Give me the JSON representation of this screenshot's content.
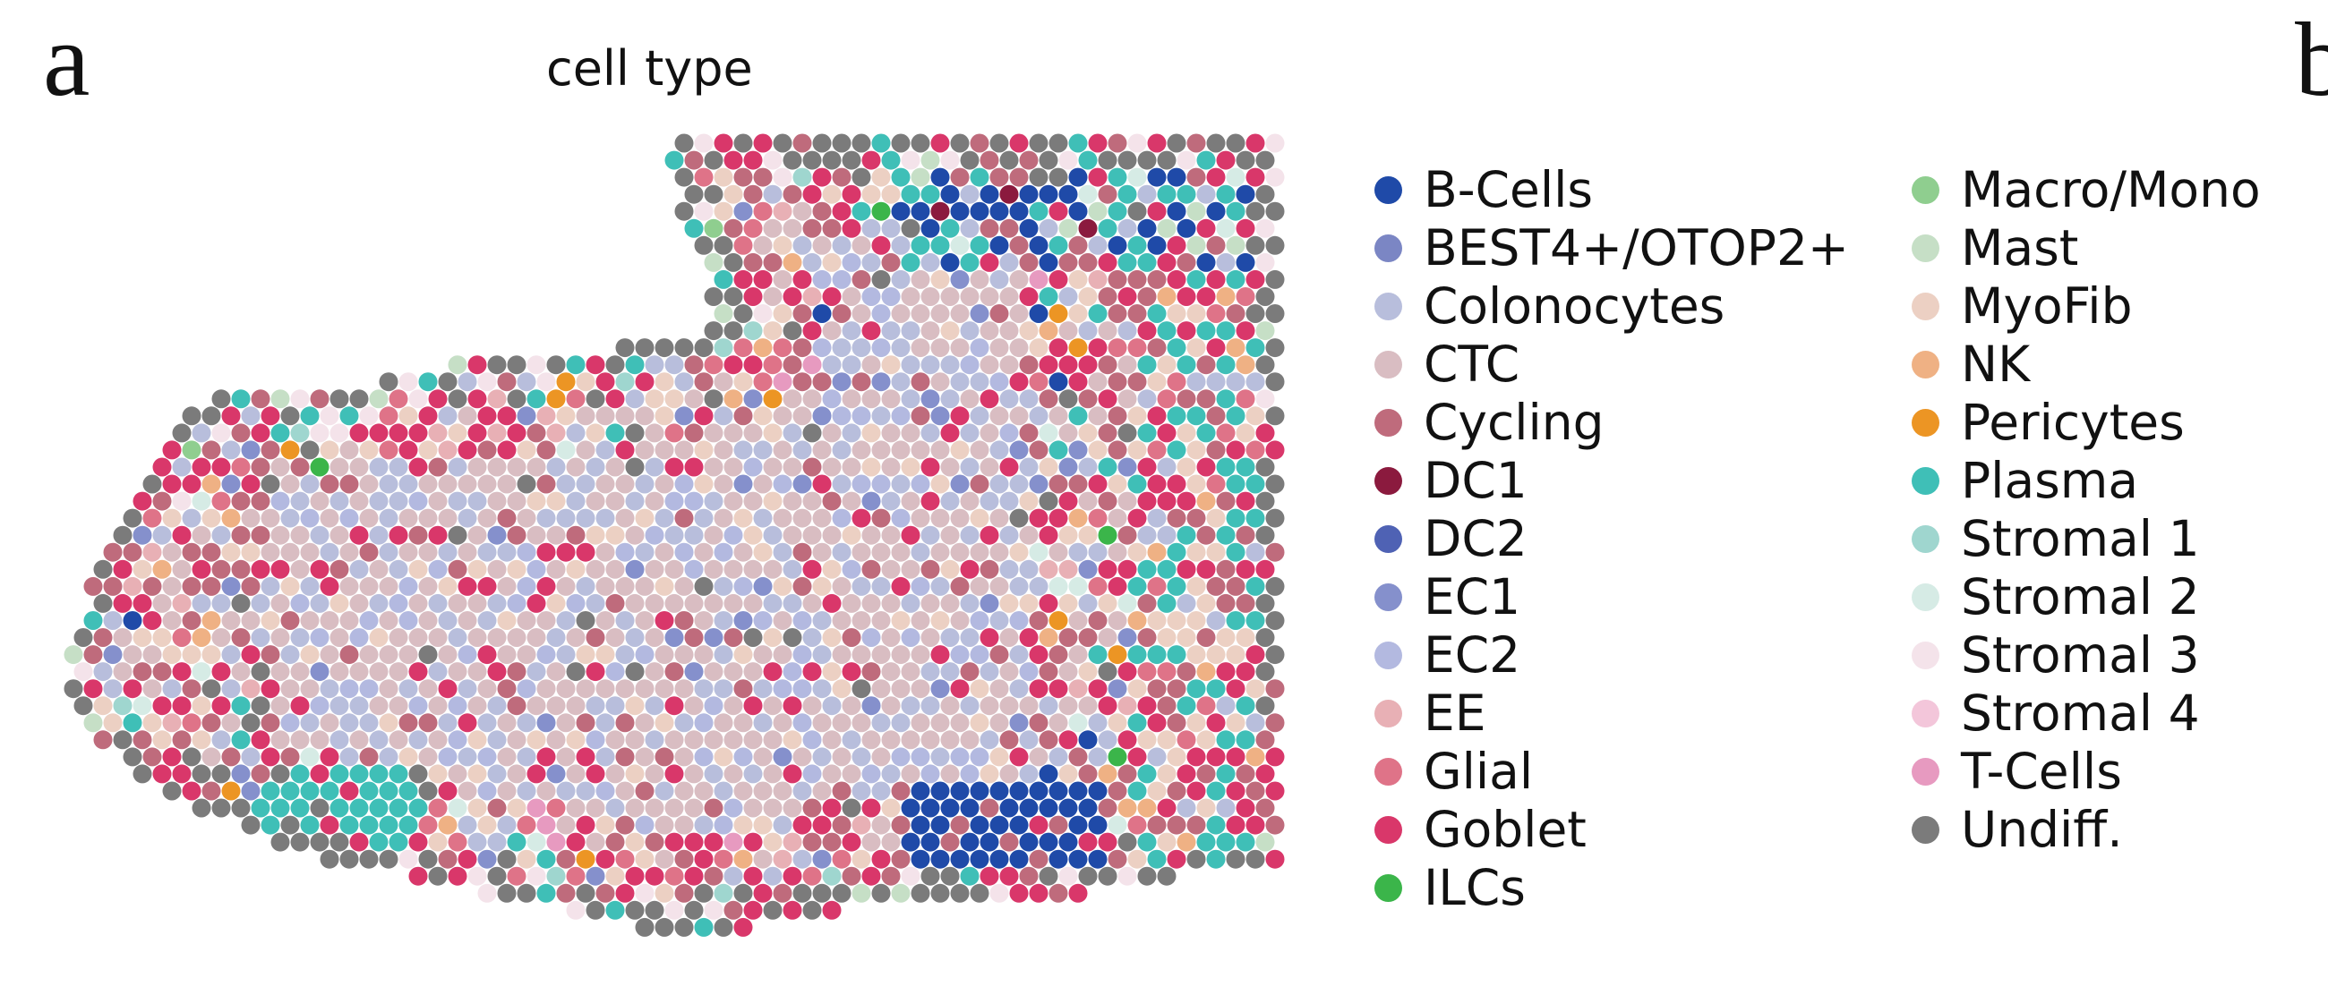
{
  "figure": {
    "panel_letters": [
      "a",
      "b"
    ]
  },
  "chart_data": {
    "type": "scatter",
    "title": "cell type",
    "xlabel": "",
    "ylabel": "",
    "grid": false,
    "legend_placement": "right",
    "legend_columns": 2,
    "categories": [
      {
        "name": "B-Cells",
        "color": "#1f4aa8"
      },
      {
        "name": "BEST4+/OTOP2+",
        "color": "#7b86c4"
      },
      {
        "name": "Colonocytes",
        "color": "#b8bedc"
      },
      {
        "name": "CTC",
        "color": "#d9bdc2"
      },
      {
        "name": "Cycling",
        "color": "#bf6b7c"
      },
      {
        "name": "DC1",
        "color": "#8b1a3e"
      },
      {
        "name": "DC2",
        "color": "#4f62b4"
      },
      {
        "name": "EC1",
        "color": "#8590cc"
      },
      {
        "name": "EC2",
        "color": "#b3b9e0"
      },
      {
        "name": "EE",
        "color": "#e8b0b5"
      },
      {
        "name": "Glial",
        "color": "#df7388"
      },
      {
        "name": "Goblet",
        "color": "#d9376a"
      },
      {
        "name": "ILCs",
        "color": "#3bb54a"
      },
      {
        "name": "Macro/Mono",
        "color": "#8fce8f"
      },
      {
        "name": "Mast",
        "color": "#c6dfc6"
      },
      {
        "name": "MyoFib",
        "color": "#ecd0c3"
      },
      {
        "name": "NK",
        "color": "#efb184"
      },
      {
        "name": "Pericytes",
        "color": "#ec9524"
      },
      {
        "name": "Plasma",
        "color": "#3fbfb7"
      },
      {
        "name": "Stromal 1",
        "color": "#9fd6cf"
      },
      {
        "name": "Stromal 2",
        "color": "#d6ebe5"
      },
      {
        "name": "Stromal 3",
        "color": "#f4e3ea"
      },
      {
        "name": "Stromal 4",
        "color": "#f3c6da"
      },
      {
        "name": "T-Cells",
        "color": "#e79ac0"
      },
      {
        "name": "Undiff.",
        "color": "#7b7b7b"
      }
    ]
  }
}
